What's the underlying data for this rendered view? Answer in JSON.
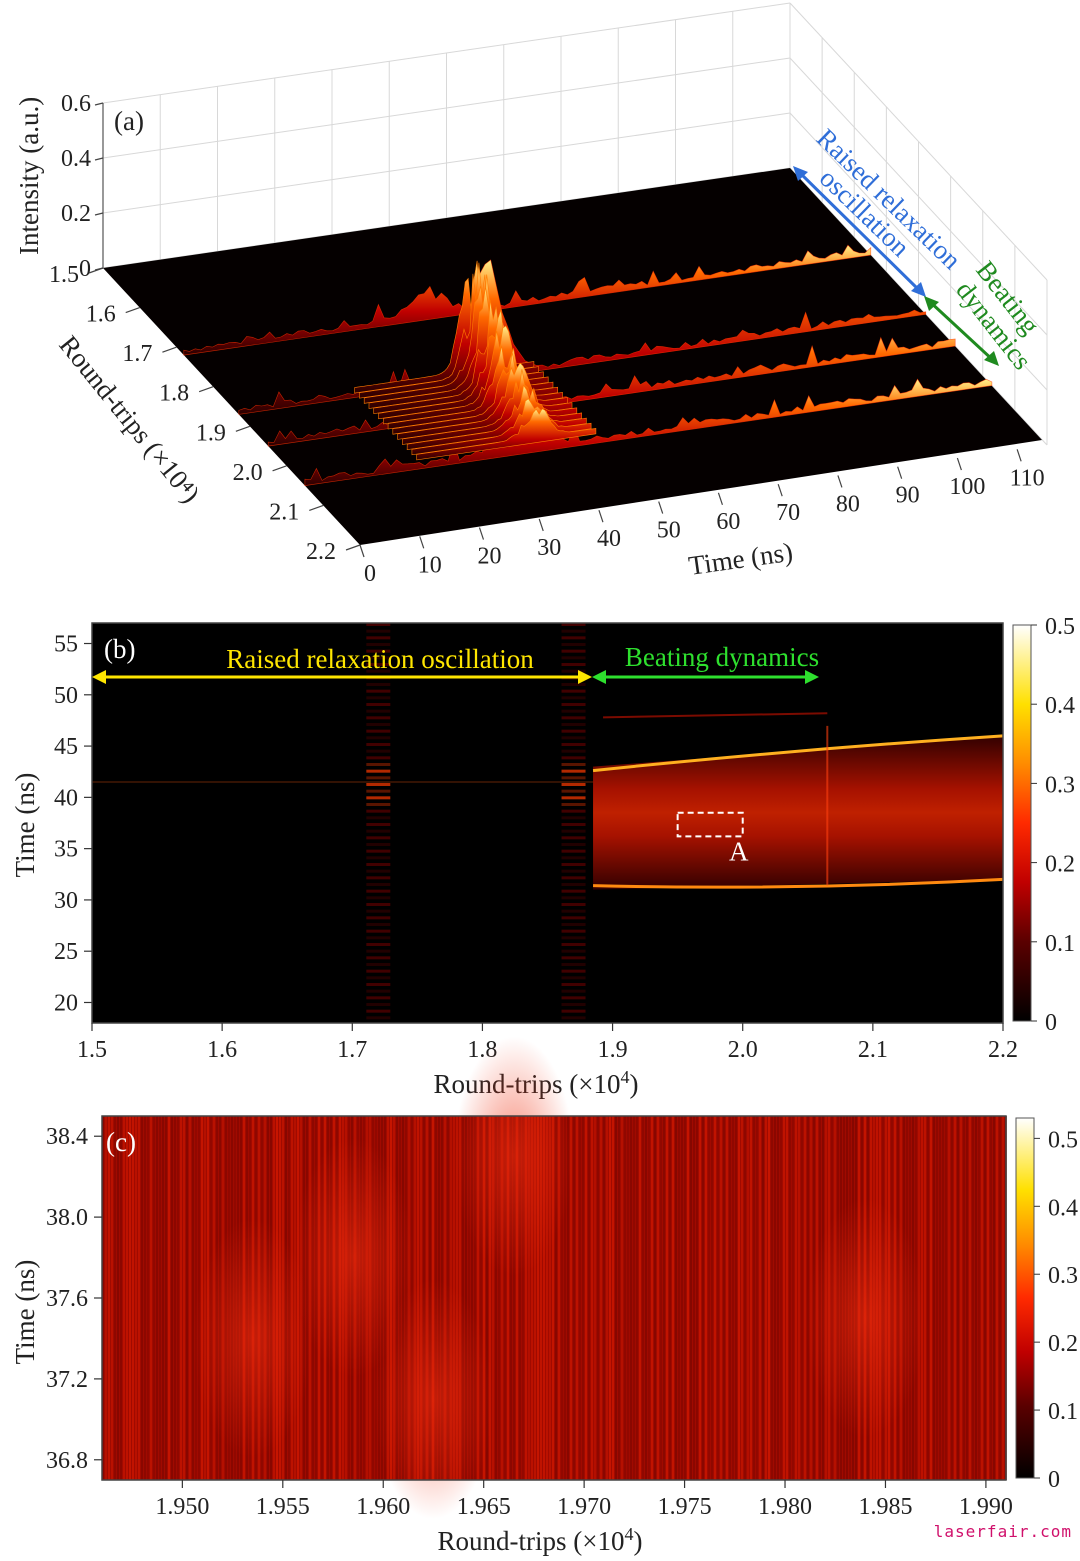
{
  "chart_data": [
    {
      "panel": "(a)",
      "type": "surface",
      "zlabel": "Intensity (a.u.)",
      "zticks": [
        "0",
        "0.2",
        "0.4",
        "0.6"
      ],
      "ylabel": "Round-trips (×10⁴)",
      "yticks": [
        "1.5",
        "1.6",
        "1.7",
        "1.8",
        "1.9",
        "2.0",
        "2.1",
        "2.2"
      ],
      "xlabel": "Time (ns)",
      "xticks": [
        "0",
        "10",
        "20",
        "30",
        "40",
        "50",
        "60",
        "70",
        "80",
        "90",
        "100",
        "110"
      ],
      "annotations": [
        "Raised relaxation",
        "oscillation",
        "Beating",
        "dynamics"
      ],
      "ridges": [
        {
          "round_trip": 1.72,
          "peak_time_ns": 41,
          "peak": 0.1
        },
        {
          "round_trip": 1.87,
          "peak_time_ns": 41,
          "peak": 0.5
        },
        {
          "round_trip": 1.95,
          "peak_time_ns": 38,
          "peak": 0.35
        },
        {
          "round_trip": 2.05,
          "peak_time_ns": 36,
          "peak": 0.2
        }
      ]
    },
    {
      "panel": "(b)",
      "type": "heatmap",
      "xlabel_main": "Round-trips (×10",
      "xlabel_sup": "4",
      "xlabel_end": ")",
      "ylabel": "Time (ns)",
      "xticks": [
        "1.5",
        "1.6",
        "1.7",
        "1.8",
        "1.9",
        "2.0",
        "2.1",
        "2.2"
      ],
      "yticks": [
        "20",
        "25",
        "30",
        "35",
        "40",
        "45",
        "50",
        "55"
      ],
      "xlim": [
        1.5,
        2.2
      ],
      "ylim": [
        18,
        57
      ],
      "colorbar_ticks": [
        "0",
        "0.1",
        "0.2",
        "0.3",
        "0.4",
        "0.5"
      ],
      "colorbar_range": [
        0,
        0.5
      ],
      "annotations": {
        "raised": "Raised relaxation oscillation",
        "beating": "Beating dynamics",
        "box": "A"
      },
      "bursts": [
        1.72,
        1.87
      ],
      "beating_start": 1.885,
      "beating_end": 2.065,
      "upper_edge_ns": [
        43,
        46
      ],
      "lower_edge_ns": [
        31,
        32
      ],
      "box_region": {
        "x": [
          1.95,
          2.0
        ],
        "y": [
          36.2,
          38.5
        ]
      }
    },
    {
      "panel": "(c)",
      "type": "heatmap",
      "xlabel_main": "Round-trips (×10",
      "xlabel_sup": "4",
      "xlabel_end": ")",
      "ylabel": "Time (ns)",
      "xticks": [
        "1.950",
        "1.955",
        "1.960",
        "1.965",
        "1.970",
        "1.975",
        "1.980",
        "1.985",
        "1.990"
      ],
      "yticks": [
        "36.8",
        "37.2",
        "37.6",
        "38.0",
        "38.4"
      ],
      "xlim": [
        1.946,
        1.991
      ],
      "ylim": [
        36.7,
        38.5
      ],
      "colorbar_ticks": [
        "0",
        "0.1",
        "0.2",
        "0.3",
        "0.4",
        "0.5"
      ],
      "colorbar_range": [
        0,
        0.53
      ]
    }
  ],
  "watermark": "laserfair.com"
}
